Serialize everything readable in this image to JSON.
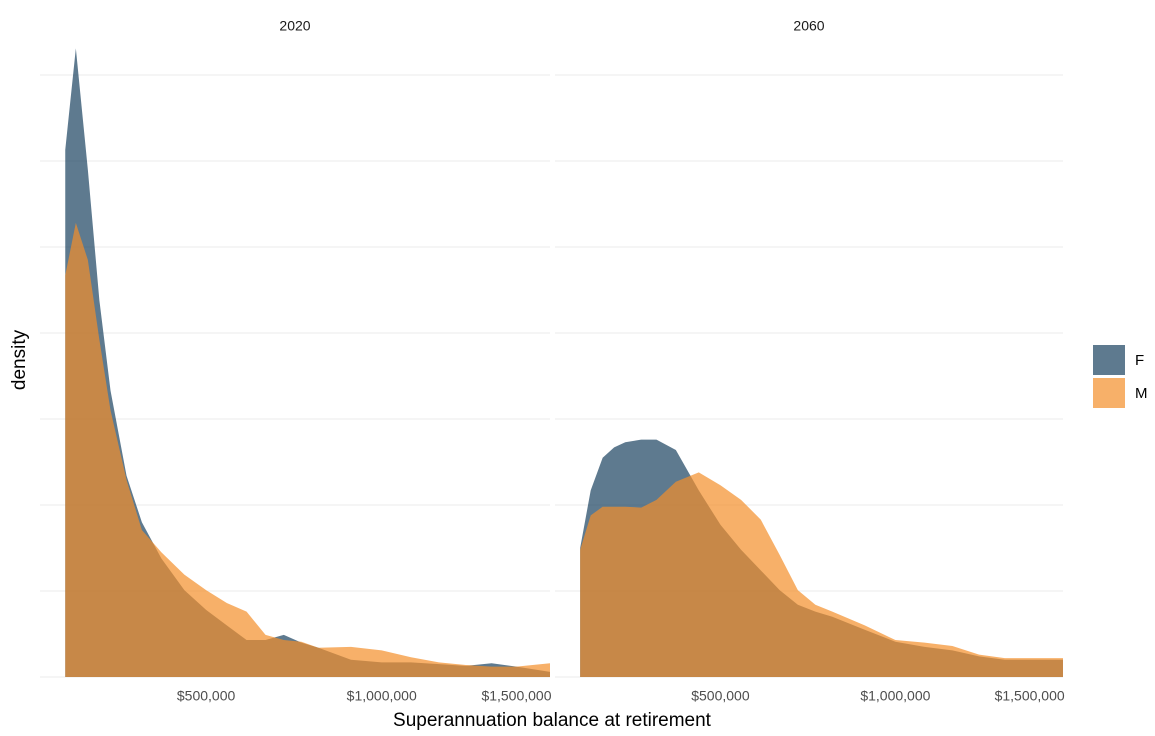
{
  "chart_data": {
    "type": "density",
    "x_label": "Superannuation balance at retirement",
    "y_label": "density",
    "x_scale": "sqrt",
    "xlim": [
      185000,
      1640000
    ],
    "xticks": [
      {
        "value": 500000,
        "label": "$500,000"
      },
      {
        "value": 1000000,
        "label": "$1,000,000"
      },
      {
        "value": 1500000,
        "label": "$1,500,000"
      }
    ],
    "ylim": [
      0,
      0.0075
    ],
    "yticks": [
      0,
      0.001,
      0.002,
      0.003,
      0.004,
      0.005,
      0.006,
      0.007
    ],
    "grid": true,
    "alpha": 0.7,
    "legend_position": "right",
    "series": [
      {
        "name": "F",
        "color": "#1a415f"
      },
      {
        "name": "M",
        "color": "#f38e2a"
      }
    ],
    "x": [
      223000,
      240000,
      260000,
      280000,
      300000,
      330000,
      360000,
      400000,
      450000,
      500000,
      550000,
      600000,
      650000,
      700000,
      750000,
      800000,
      900000,
      1000000,
      1100000,
      1200000,
      1300000,
      1400000,
      1500000,
      1640000
    ],
    "facets": [
      {
        "title": "2020",
        "values": [
          [
            0.00613,
            0.00731,
            0.0059,
            0.00438,
            0.00333,
            0.00234,
            0.0018,
            0.00138,
            0.00101,
            0.00078,
            0.0006,
            0.00043,
            0.00043,
            0.00049,
            0.0004,
            0.00034,
            0.0002,
            0.00017,
            0.00017,
            0.00015,
            0.00013,
            0.00016,
            0.00012,
            6e-05
          ],
          [
            0.00467,
            0.00528,
            0.00485,
            0.00392,
            0.0031,
            0.00229,
            0.00171,
            0.00145,
            0.00119,
            0.00101,
            0.00086,
            0.00076,
            0.00049,
            0.00043,
            0.00041,
            0.00034,
            0.00035,
            0.00031,
            0.00023,
            0.00017,
            0.00014,
            0.00012,
            0.00012,
            0.00016
          ]
        ]
      },
      {
        "title": "2060",
        "values": [
          [
            0.0015,
            0.00217,
            0.00255,
            0.00267,
            0.00273,
            0.00276,
            0.00276,
            0.00264,
            0.00217,
            0.00177,
            0.00148,
            0.00124,
            0.00101,
            0.00084,
            0.00076,
            0.0007,
            0.00055,
            0.00041,
            0.00035,
            0.00031,
            0.00024,
            0.0002,
            0.0002,
            0.0002
          ],
          [
            0.00148,
            0.00188,
            0.00198,
            0.00198,
            0.00198,
            0.00197,
            0.00206,
            0.00227,
            0.00238,
            0.00223,
            0.00206,
            0.00183,
            0.00142,
            0.00101,
            0.00084,
            0.00076,
            0.0006,
            0.00043,
            0.0004,
            0.00036,
            0.00026,
            0.00022,
            0.00022,
            0.00022
          ]
        ]
      }
    ]
  }
}
